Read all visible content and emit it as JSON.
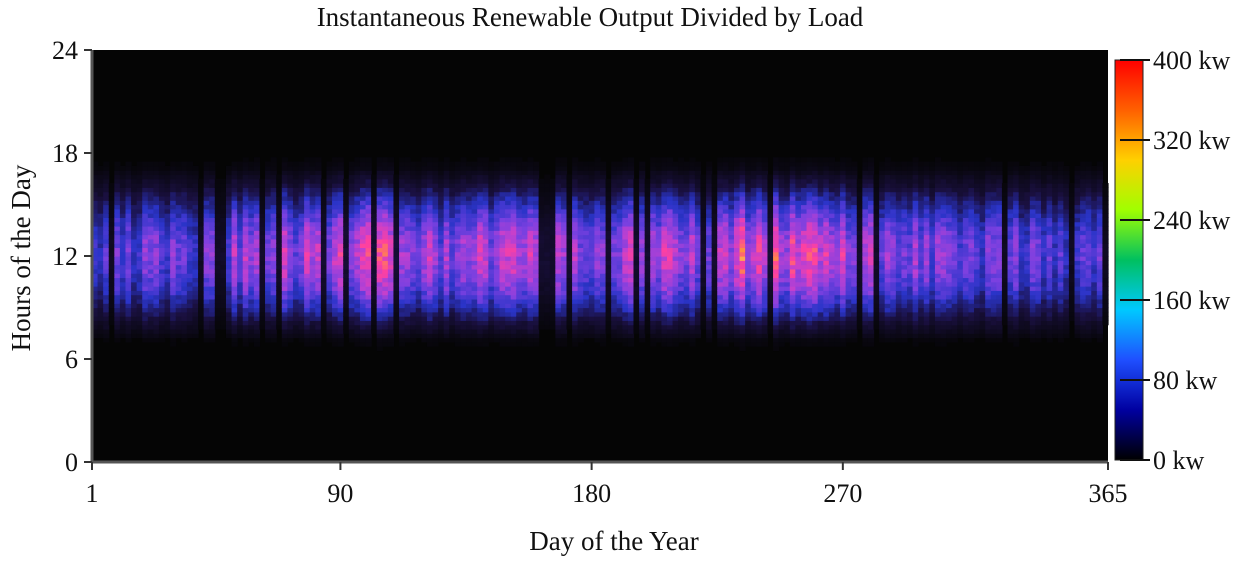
{
  "chart_data": {
    "type": "heatmap",
    "title": "Instantaneous Renewable Output Divided by Load",
    "xlabel": "Day of the Year",
    "ylabel": "Hours of the Day",
    "x_ticks": [
      1,
      90,
      180,
      270,
      365
    ],
    "y_ticks": [
      0,
      6,
      12,
      18,
      24
    ],
    "xlim": [
      1,
      365
    ],
    "ylim": [
      0,
      24
    ],
    "colorbar": {
      "ticks": [
        {
          "value": 0,
          "label": "0 kw"
        },
        {
          "value": 80,
          "label": "80 kw"
        },
        {
          "value": 160,
          "label": "160 kw"
        },
        {
          "value": 240,
          "label": "240 kw"
        },
        {
          "value": 320,
          "label": "320 kw"
        },
        {
          "value": 400,
          "label": "400 kw"
        }
      ],
      "range": [
        0,
        400
      ],
      "colors": [
        "#000000",
        "#0000a0",
        "#1f4fff",
        "#00c8ff",
        "#00c060",
        "#a0ff00",
        "#ffd000",
        "#ff6000",
        "#ff0000"
      ]
    },
    "heatmap_colors": [
      "#050505",
      "#1a1040",
      "#2a34c8",
      "#7a40e0",
      "#c040d0",
      "#ff40a0",
      "#ff9040",
      "#ffe080",
      "#ffffff"
    ],
    "profile": {
      "hours": [
        0,
        6,
        7,
        8,
        9,
        10,
        11,
        12,
        13,
        14,
        15,
        16,
        17,
        18,
        24
      ],
      "mean_kw": [
        0,
        0,
        10,
        60,
        130,
        190,
        230,
        250,
        230,
        180,
        120,
        60,
        15,
        0,
        0
      ]
    },
    "background_color": "#050505"
  }
}
